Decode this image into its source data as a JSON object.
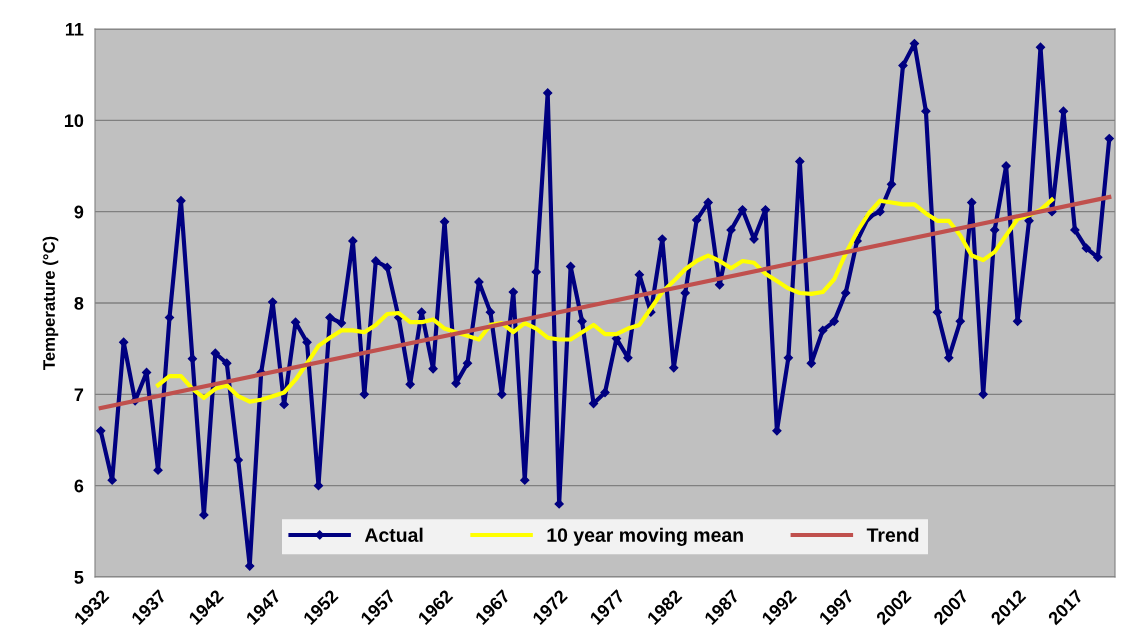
{
  "chart_data": {
    "type": "line",
    "ylabel": "Temperature (°C)",
    "xlim": [
      1931.5,
      2020.5
    ],
    "xticks": [
      1932,
      1937,
      1942,
      1947,
      1952,
      1957,
      1962,
      1967,
      1972,
      1977,
      1982,
      1987,
      1992,
      1997,
      2002,
      2007,
      2012,
      2017
    ],
    "ylim": [
      5,
      11
    ],
    "yticks": [
      5,
      6,
      7,
      8,
      9,
      10,
      11
    ],
    "grid": "y",
    "legend": "bottom",
    "series": [
      {
        "name": "Actual",
        "color": "#000080",
        "marker": "diamond",
        "x": [
          1932,
          1933,
          1934,
          1935,
          1936,
          1937,
          1938,
          1939,
          1940,
          1941,
          1942,
          1943,
          1944,
          1945,
          1946,
          1947,
          1948,
          1949,
          1950,
          1951,
          1952,
          1953,
          1954,
          1955,
          1956,
          1957,
          1958,
          1959,
          1960,
          1961,
          1962,
          1963,
          1964,
          1965,
          1966,
          1967,
          1968,
          1969,
          1970,
          1971,
          1972,
          1973,
          1974,
          1975,
          1976,
          1977,
          1978,
          1979,
          1980,
          1981,
          1982,
          1983,
          1984,
          1985,
          1986,
          1987,
          1988,
          1989,
          1990,
          1991,
          1992,
          1993,
          1994,
          1995,
          1996,
          1997,
          1998,
          1999,
          2000,
          2001,
          2002,
          2003,
          2004,
          2005,
          2006,
          2007,
          2008,
          2009,
          2010,
          2011,
          2012,
          2013,
          2014,
          2015,
          2016,
          2017,
          2018,
          2019,
          2020
        ],
        "values": [
          6.6,
          6.06,
          7.57,
          6.93,
          7.24,
          6.17,
          7.84,
          9.12,
          7.39,
          5.68,
          7.45,
          7.34,
          6.28,
          5.12,
          7.24,
          8.01,
          6.89,
          7.79,
          7.57,
          6.0,
          7.84,
          7.78,
          8.68,
          7.0,
          8.46,
          8.39,
          7.84,
          7.11,
          7.9,
          7.28,
          8.89,
          7.12,
          7.34,
          8.23,
          7.9,
          7.0,
          8.12,
          6.06,
          8.34,
          10.3,
          5.8,
          8.4,
          7.8,
          6.9,
          7.02,
          7.61,
          7.4,
          8.31,
          7.9,
          8.7,
          7.29,
          8.11,
          8.91,
          9.1,
          8.2,
          8.8,
          9.02,
          8.7,
          9.02,
          6.6,
          7.4,
          9.55,
          7.34,
          7.7,
          7.8,
          8.11,
          8.68,
          8.94,
          9.0,
          9.3,
          10.6,
          10.84,
          10.1,
          7.9,
          7.4,
          7.8,
          9.1,
          7.0,
          8.8,
          9.5,
          7.8,
          8.9,
          10.8,
          9.0,
          10.1,
          8.8,
          8.6,
          8.5,
          9.8
        ]
      },
      {
        "name": "10 year moving mean",
        "color": "#ffff00",
        "marker": "none",
        "x": [
          1937,
          1938,
          1939,
          1940,
          1941,
          1942,
          1943,
          1944,
          1945,
          1946,
          1947,
          1948,
          1949,
          1950,
          1951,
          1952,
          1953,
          1954,
          1955,
          1956,
          1957,
          1958,
          1959,
          1960,
          1961,
          1962,
          1963,
          1964,
          1965,
          1966,
          1967,
          1968,
          1969,
          1970,
          1971,
          1972,
          1973,
          1974,
          1975,
          1976,
          1977,
          1978,
          1979,
          1980,
          1981,
          1982,
          1983,
          1984,
          1985,
          1986,
          1987,
          1988,
          1989,
          1990,
          1991,
          1992,
          1993,
          1994,
          1995,
          1996,
          1997,
          1998,
          1999,
          2000,
          2001,
          2002,
          2003,
          2004,
          2005,
          2006,
          2007,
          2008,
          2009,
          2010,
          2011,
          2012,
          2013,
          2014,
          2015
        ],
        "values": [
          7.1,
          7.2,
          7.2,
          7.06,
          6.96,
          7.06,
          7.1,
          6.98,
          6.92,
          6.94,
          6.98,
          7.02,
          7.16,
          7.34,
          7.53,
          7.62,
          7.7,
          7.7,
          7.68,
          7.76,
          7.88,
          7.89,
          7.79,
          7.79,
          7.82,
          7.72,
          7.68,
          7.64,
          7.6,
          7.76,
          7.78,
          7.68,
          7.78,
          7.72,
          7.62,
          7.6,
          7.6,
          7.68,
          7.76,
          7.66,
          7.66,
          7.72,
          7.76,
          7.94,
          8.12,
          8.24,
          8.37,
          8.46,
          8.52,
          8.46,
          8.38,
          8.46,
          8.44,
          8.32,
          8.24,
          8.16,
          8.11,
          8.1,
          8.12,
          8.26,
          8.54,
          8.78,
          8.98,
          9.12,
          9.1,
          9.08,
          9.08,
          8.98,
          8.9,
          8.9,
          8.74,
          8.52,
          8.47,
          8.56,
          8.74,
          8.92,
          8.96,
          9.02,
          9.13
        ]
      },
      {
        "name": "Trend",
        "color": "#c0504d",
        "marker": "none",
        "x": [
          1932,
          2020
        ],
        "values": [
          6.85,
          9.16
        ]
      }
    ]
  }
}
